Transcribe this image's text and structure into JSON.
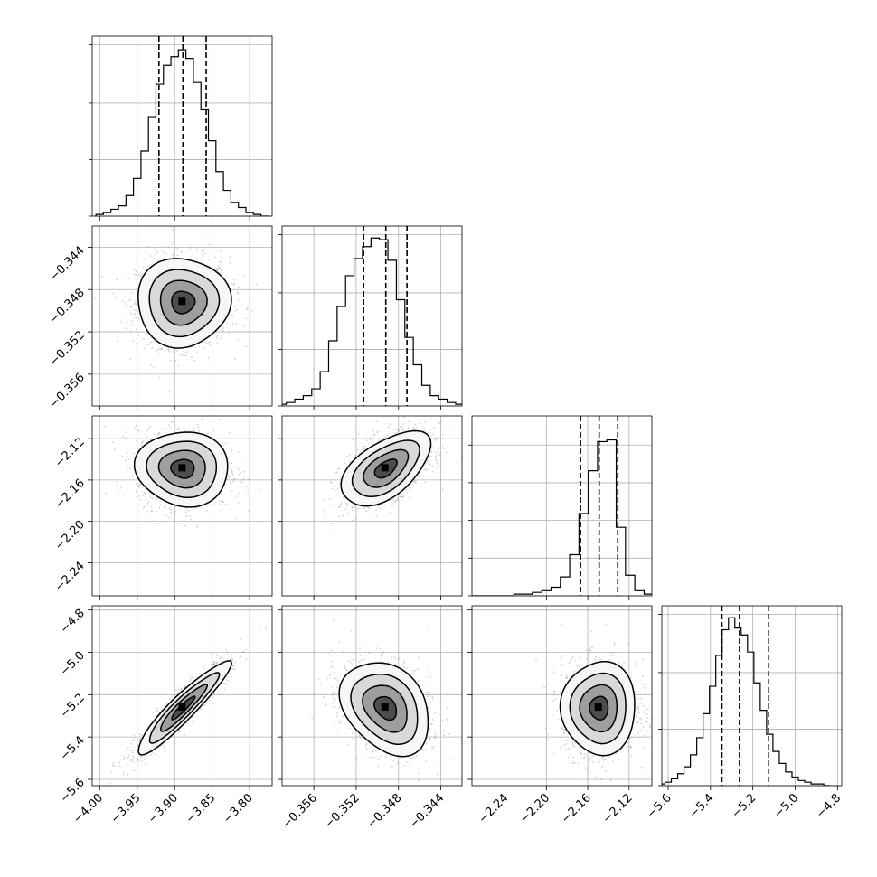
{
  "chart_data": {
    "type": "corner",
    "title": "",
    "params": [
      {
        "label": "",
        "median": -3.889,
        "q16": -3.921,
        "q84": -3.858,
        "range": [
          -4.01,
          -3.77
        ],
        "ticks": [
          -4.0,
          -3.95,
          -3.9,
          -3.85,
          -3.8
        ],
        "tick_labels": [
          "−4.00",
          "−3.95",
          "−3.90",
          "−3.85",
          "−3.80"
        ],
        "hist_x": [
          -4.0,
          -3.99,
          -3.98,
          -3.97,
          -3.96,
          -3.95,
          -3.94,
          -3.93,
          -3.92,
          -3.91,
          -3.9,
          -3.89,
          -3.88,
          -3.87,
          -3.86,
          -3.85,
          -3.84,
          -3.83,
          -3.82,
          -3.81,
          -3.8,
          -3.79,
          -3.78
        ],
        "hist_counts": [
          0.01,
          0.02,
          0.04,
          0.06,
          0.12,
          0.22,
          0.38,
          0.58,
          0.77,
          0.88,
          0.93,
          0.97,
          0.92,
          0.78,
          0.62,
          0.44,
          0.26,
          0.15,
          0.08,
          0.05,
          0.02,
          0.01,
          0.0
        ],
        "hist_ticks": [
          0,
          0.33,
          0.66,
          1.0
        ]
      },
      {
        "label": "",
        "median": -0.3492,
        "q16": -0.3513,
        "q84": -0.3472,
        "range": [
          -0.359,
          -0.342
        ],
        "ticks": [
          -0.356,
          -0.352,
          -0.348,
          -0.344
        ],
        "tick_labels": [
          "−0.356",
          "−0.352",
          "−0.348",
          "−0.344"
        ],
        "hist_x": [
          -0.359,
          -0.3582,
          -0.3574,
          -0.3566,
          -0.3558,
          -0.355,
          -0.3542,
          -0.3534,
          -0.3526,
          -0.3518,
          -0.351,
          -0.3502,
          -0.3494,
          -0.3486,
          -0.3478,
          -0.347,
          -0.3462,
          -0.3454,
          -0.3446,
          -0.3438,
          -0.343,
          -0.3422
        ],
        "hist_counts": [
          0.01,
          0.02,
          0.04,
          0.06,
          0.1,
          0.2,
          0.38,
          0.58,
          0.76,
          0.86,
          0.93,
          0.98,
          0.97,
          0.85,
          0.62,
          0.4,
          0.24,
          0.12,
          0.06,
          0.04,
          0.02,
          0.01
        ],
        "hist_ticks": [
          0,
          0.33,
          0.66,
          1.0
        ]
      },
      {
        "label": "",
        "median": -2.149,
        "q16": -2.167,
        "q84": -2.131,
        "range": [
          -2.272,
          -2.098
        ],
        "ticks": [
          -2.24,
          -2.2,
          -2.16,
          -2.12
        ],
        "tick_labels": [
          "−2.24",
          "−2.20",
          "−2.16",
          "−2.12"
        ],
        "hist_x": [
          -2.272,
          -2.263,
          -2.254,
          -2.245,
          -2.236,
          -2.227,
          -2.218,
          -2.209,
          -2.2,
          -2.191,
          -2.182,
          -2.173,
          -2.164,
          -2.155,
          -2.146,
          -2.137,
          -2.128,
          -2.119,
          -2.11,
          -2.101
        ],
        "hist_counts": [
          0.0,
          0.0,
          0.0,
          0.0,
          0.0,
          0.01,
          0.01,
          0.02,
          0.03,
          0.05,
          0.11,
          0.24,
          0.48,
          0.73,
          0.9,
          0.91,
          0.4,
          0.12,
          0.03,
          0.01
        ],
        "hist_ticks": [
          0,
          0.22,
          0.44,
          0.66,
          0.88
        ]
      },
      {
        "label": "",
        "median": -5.263,
        "q16": -5.346,
        "q84": -5.125,
        "range": [
          -5.63,
          -4.78
        ],
        "ticks": [
          -5.6,
          -5.4,
          -5.2,
          -5.0,
          -4.8
        ],
        "tick_labels": [
          "−5.6",
          "−5.4",
          "−5.2",
          "−5.0",
          "−4.8"
        ],
        "hist_x": [
          -5.63,
          -5.6,
          -5.57,
          -5.54,
          -5.51,
          -5.48,
          -5.45,
          -5.42,
          -5.39,
          -5.36,
          -5.33,
          -5.3,
          -5.27,
          -5.24,
          -5.21,
          -5.18,
          -5.15,
          -5.12,
          -5.09,
          -5.06,
          -5.03,
          -5.0,
          -4.97,
          -4.94,
          -4.91,
          -4.88,
          -4.85
        ],
        "hist_counts": [
          0.01,
          0.02,
          0.04,
          0.07,
          0.11,
          0.18,
          0.28,
          0.42,
          0.58,
          0.76,
          0.91,
          0.98,
          0.92,
          0.88,
          0.78,
          0.6,
          0.44,
          0.3,
          0.2,
          0.13,
          0.08,
          0.05,
          0.03,
          0.02,
          0.01,
          0.01,
          0.0
        ],
        "hist_ticks": [
          0,
          0.33,
          0.66,
          1.0
        ]
      }
    ],
    "correlations": [
      [
        1.0,
        0.0,
        -0.05,
        0.93
      ],
      [
        0.0,
        1.0,
        0.55,
        -0.3
      ],
      [
        -0.05,
        0.55,
        1.0,
        0.0
      ],
      [
        0.93,
        -0.3,
        0.0,
        1.0
      ]
    ],
    "sigma": [
      0.031,
      0.0021,
      0.018,
      0.11
    ],
    "contour_levels_sigma": [
      0.5,
      1.0,
      1.5,
      2.0
    ],
    "colors": {
      "points": "#7f7f7f",
      "hist": "#000000",
      "density_light": "#eeeeee",
      "density_dark": "#000000",
      "grid": "#b0b0b0"
    }
  }
}
